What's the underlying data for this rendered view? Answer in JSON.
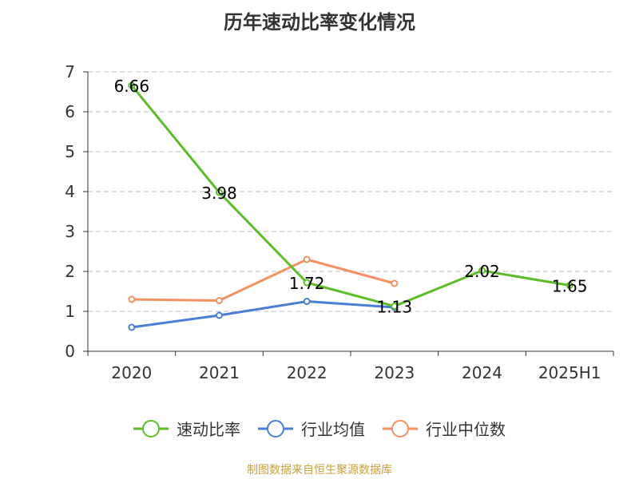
{
  "chart_data": {
    "type": "line",
    "title": "历年速动比率变化情况",
    "categories": [
      "2020",
      "2021",
      "2022",
      "2023",
      "2024",
      "2025H1"
    ],
    "ylim": [
      0,
      7
    ],
    "yticks": [
      0,
      1,
      2,
      3,
      4,
      5,
      6,
      7
    ],
    "grid": true,
    "legend_position": "bottom",
    "series": [
      {
        "name": "速动比率",
        "color": "#5cbd26",
        "values": [
          6.66,
          3.98,
          1.72,
          1.13,
          2.02,
          1.65
        ],
        "show_labels": true
      },
      {
        "name": "行业均值",
        "color": "#4a7fd6",
        "values": [
          0.6,
          0.9,
          1.25,
          1.1,
          null,
          null
        ],
        "show_labels": false
      },
      {
        "name": "行业中位数",
        "color": "#f59062",
        "values": [
          1.3,
          1.27,
          2.3,
          1.7,
          null,
          null
        ],
        "show_labels": false
      }
    ]
  },
  "source_note": "制图数据来自恒生聚源数据库"
}
